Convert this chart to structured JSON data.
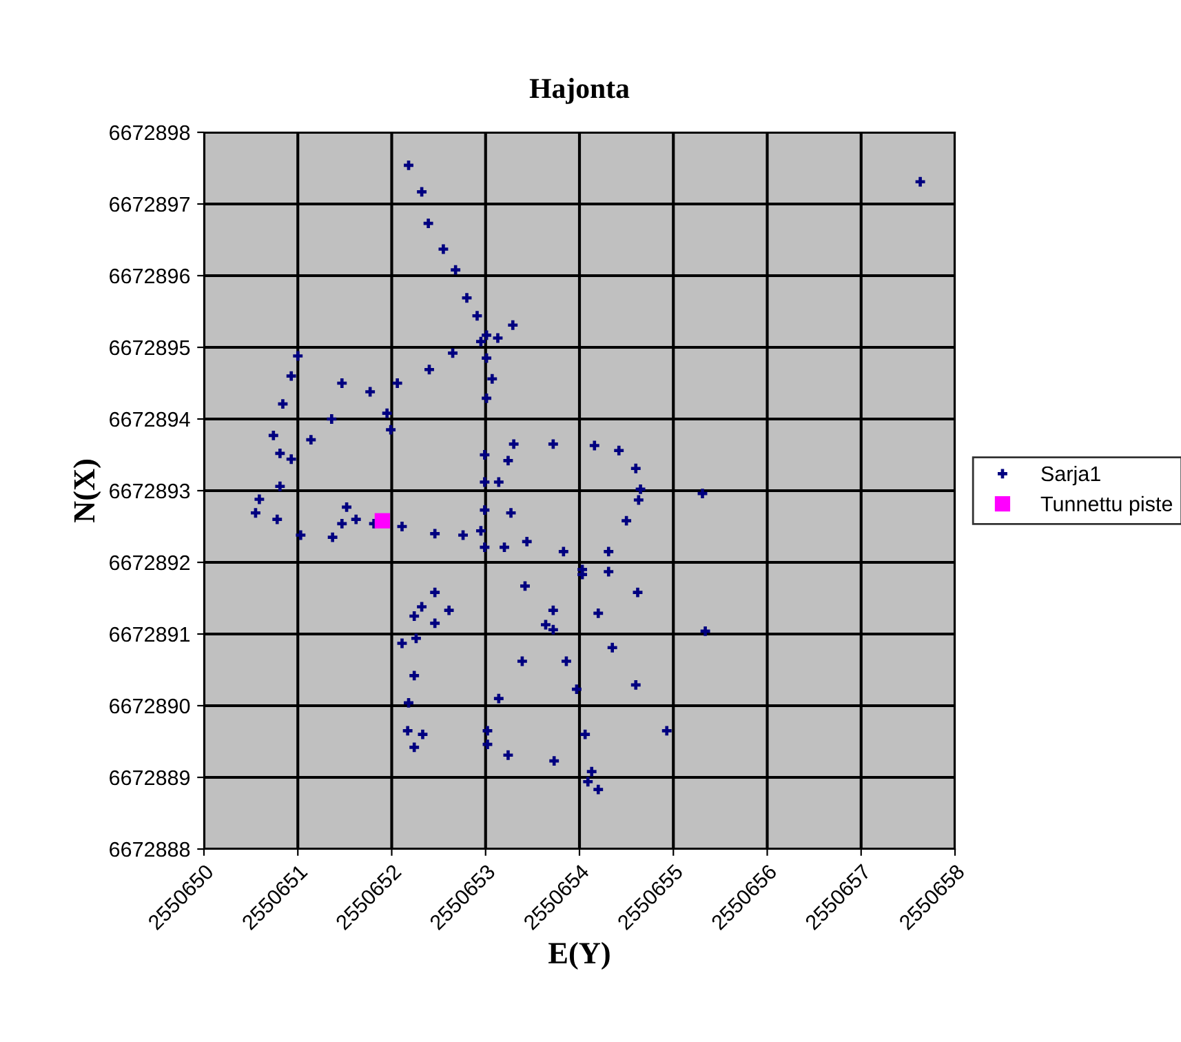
{
  "chart_data": {
    "type": "scatter",
    "title": "Hajonta",
    "xlabel": "E(Y)",
    "ylabel": "N(X)",
    "series": [
      {
        "name": "Sarja1",
        "color": "#000080",
        "marker": "cross",
        "x": [
          2550652.18,
          2550652.32,
          2550652.39,
          2550652.55,
          2550652.68,
          2550652.8,
          2550652.91,
          2550653.01,
          2550653.29,
          2550653.13,
          2550653.01,
          2550653.07,
          2550653.01,
          2550652.95,
          2550652.65,
          2550652.4,
          2550652.06,
          2550651.77,
          2550651.47,
          2550651.0,
          2550650.93,
          2550650.84,
          2550650.74,
          2550650.81,
          2550650.93,
          2550651.14,
          2550651.36,
          2550651.95,
          2550651.99,
          2550653.24,
          2550653.3,
          2550653.72,
          2550654.16,
          2550654.42,
          2550654.6,
          2550654.65,
          2550654.63,
          2550654.5,
          2550654.31,
          2550654.03,
          2550653.72,
          2550653.64,
          2550653.39,
          2550653.14,
          2550653.02,
          2550653.02,
          2550653.24,
          2550653.73,
          2550654.09,
          2550654.2,
          2550653.2,
          2550653.42,
          2550653.72,
          2550653.86,
          2550653.97,
          2550654.06,
          2550654.13,
          2550652.99,
          2550652.99,
          2550652.99,
          2550652.99,
          2550653.14,
          2550653.27,
          2550653.44,
          2550653.83,
          2550654.03,
          2550650.81,
          2550650.59,
          2550650.55,
          2550650.78,
          2550651.03,
          2550651.37,
          2550651.47,
          2550651.52,
          2550651.62,
          2550651.81,
          2550652.11,
          2550652.46,
          2550652.76,
          2550652.95,
          2550652.46,
          2550652.61,
          2550652.46,
          2550652.32,
          2550652.24,
          2550652.26,
          2550652.24,
          2550652.18,
          2550652.17,
          2550652.24,
          2550652.33,
          2550652.11,
          2550654.35,
          2550654.6,
          2550654.93,
          2550654.2,
          2550655.31,
          2550654.31,
          2550654.62,
          2550655.34,
          2550657.63
        ],
        "values": [
          6672897.54,
          6672897.17,
          6672896.73,
          6672896.37,
          6672896.08,
          6672895.69,
          6672895.44,
          6672895.17,
          6672895.31,
          6672895.13,
          6672894.85,
          6672894.56,
          6672894.29,
          6672895.08,
          6672894.92,
          6672894.69,
          6672894.5,
          6672894.38,
          6672894.5,
          6672894.88,
          6672894.6,
          6672894.21,
          6672893.77,
          6672893.52,
          6672893.44,
          6672893.71,
          6672894.0,
          6672894.08,
          6672893.85,
          6672893.42,
          6672893.65,
          6672893.65,
          6672893.63,
          6672893.56,
          6672893.31,
          6672893.02,
          6672892.87,
          6672892.58,
          6672892.15,
          6672891.83,
          6672891.33,
          6672891.13,
          6672890.62,
          6672890.1,
          6672889.65,
          6672889.46,
          6672889.31,
          6672889.23,
          6672888.94,
          6672888.83,
          6672892.21,
          6672891.67,
          6672891.06,
          6672890.62,
          6672890.23,
          6672889.6,
          6672889.08,
          6672893.5,
          6672893.12,
          6672892.73,
          6672892.21,
          6672893.12,
          6672892.69,
          6672892.29,
          6672892.15,
          6672891.9,
          6672893.06,
          6672892.88,
          6672892.69,
          6672892.6,
          6672892.38,
          6672892.35,
          6672892.54,
          6672892.77,
          6672892.6,
          6672892.54,
          6672892.5,
          6672892.4,
          6672892.38,
          6672892.44,
          6672891.58,
          6672891.33,
          6672891.15,
          6672891.38,
          6672891.25,
          6672890.94,
          6672890.42,
          6672890.04,
          6672889.65,
          6672889.42,
          6672889.6,
          6672890.87,
          6672890.81,
          6672890.29,
          6672889.65,
          6672891.29,
          6672892.96,
          6672891.87,
          6672891.58,
          6672891.04,
          6672897.31
        ]
      },
      {
        "name": "Tunnettu piste",
        "color": "#ff00ff",
        "marker": "square",
        "x": [
          2550651.9
        ],
        "values": [
          6672892.58
        ]
      }
    ],
    "xlim": [
      2550650,
      2550658
    ],
    "xticks": [
      2550650,
      2550651,
      2550652,
      2550653,
      2550654,
      2550655,
      2550656,
      2550657,
      2550658
    ],
    "ylim": [
      6672888,
      6672898
    ],
    "yticks": [
      6672888,
      6672889,
      6672890,
      6672891,
      6672892,
      6672893,
      6672894,
      6672895,
      6672896,
      6672897,
      6672898
    ],
    "grid": true,
    "legend": "right"
  }
}
